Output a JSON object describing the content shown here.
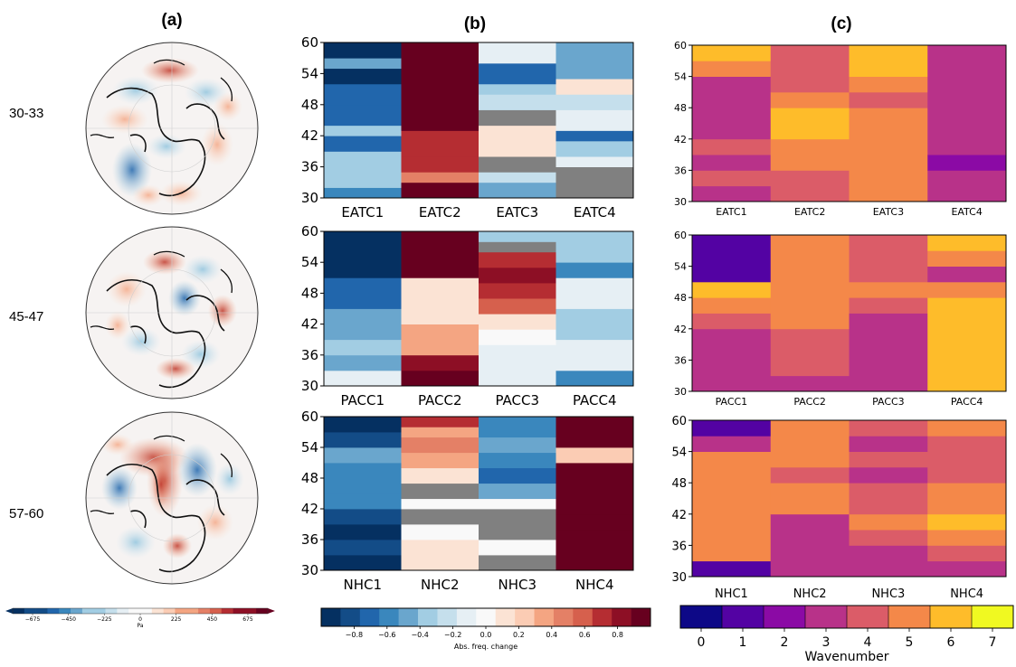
{
  "panel_titles": {
    "a": "(a)",
    "b": "(b)",
    "c": "(c)"
  },
  "row_labels": [
    "30-33",
    "45-47",
    "57-60"
  ],
  "colorbars": {
    "a": {
      "label": "Pa",
      "ticks": [
        "−675",
        "−450",
        "−225",
        "0",
        "225",
        "450",
        "675"
      ],
      "tick_values": [
        -675,
        -450,
        -225,
        0,
        225,
        450,
        675
      ],
      "range": [
        -800,
        800
      ]
    },
    "b": {
      "label": "Abs. freq. change",
      "ticks": [
        "−0.8",
        "−0.6",
        "−0.4",
        "−0.2",
        "0.0",
        "0.2",
        "0.4",
        "0.6",
        "0.8"
      ],
      "tick_values": [
        -0.8,
        -0.6,
        -0.4,
        -0.2,
        0.0,
        0.2,
        0.4,
        0.6,
        0.8
      ],
      "range": [
        -1.0,
        1.0
      ]
    },
    "c": {
      "label": "Wavenumber",
      "ticks": [
        "0",
        "1",
        "2",
        "3",
        "4",
        "5",
        "6",
        "7"
      ],
      "tick_values": [
        0,
        1,
        2,
        3,
        4,
        5,
        6,
        7
      ]
    }
  },
  "palettes": {
    "diverging": [
      "#053061",
      "#134c87",
      "#2166ac",
      "#3a87bd",
      "#6aa6cd",
      "#a2cde3",
      "#c5dfec",
      "#e6eff4",
      "#f9f9f9",
      "#fbe3d4",
      "#fbccb4",
      "#f4a582",
      "#e48066",
      "#d6604d",
      "#b52d32",
      "#8d0f25",
      "#67001f"
    ],
    "missing": "#808080",
    "wavenumber": [
      "#0d0887",
      "#5302a3",
      "#8b0aa5",
      "#b83289",
      "#db5c68",
      "#f48849",
      "#febc2a",
      "#f0f921"
    ]
  },
  "chart_data": [
    {
      "type": "heatmap",
      "panel": "(b)",
      "row": 0,
      "categories": [
        "EATC1",
        "EATC2",
        "EATC3",
        "EATC4"
      ],
      "yticks": [
        "30",
        "36",
        "42",
        "48",
        "54",
        "60"
      ],
      "ylim": [
        30,
        60
      ],
      "columns": [
        [
          [
            30,
            32,
            -0.55
          ],
          [
            32,
            34,
            -0.3
          ],
          [
            34,
            37,
            -0.3
          ],
          [
            37,
            39,
            -0.4
          ],
          [
            39,
            42,
            -0.7
          ],
          [
            42,
            44,
            -0.35
          ],
          [
            44,
            48,
            -0.7
          ],
          [
            48,
            52,
            -0.75
          ],
          [
            52,
            55,
            -0.95
          ],
          [
            55,
            57,
            -0.5
          ],
          [
            57,
            60,
            -0.9
          ]
        ],
        [
          [
            30,
            33,
            0.95
          ],
          [
            33,
            35,
            0.45
          ],
          [
            35,
            38,
            0.65
          ],
          [
            38,
            43,
            0.75
          ],
          [
            43,
            60,
            1.0
          ]
        ],
        [
          [
            30,
            33,
            -0.45
          ],
          [
            33,
            35,
            -0.25
          ],
          [
            35,
            38,
            null
          ],
          [
            38,
            44,
            0.1
          ],
          [
            44,
            47,
            null
          ],
          [
            47,
            50,
            -0.25
          ],
          [
            50,
            52,
            -0.35
          ],
          [
            52,
            56,
            -0.7
          ],
          [
            56,
            60,
            -0.15
          ]
        ],
        [
          [
            30,
            36,
            null
          ],
          [
            36,
            38,
            -0.15
          ],
          [
            38,
            41,
            -0.35
          ],
          [
            41,
            43,
            -0.7
          ],
          [
            43,
            47,
            -0.15
          ],
          [
            47,
            50,
            -0.25
          ],
          [
            50,
            53,
            0.1
          ],
          [
            53,
            60,
            -0.45
          ]
        ]
      ]
    },
    {
      "type": "heatmap",
      "panel": "(b)",
      "row": 1,
      "categories": [
        "PACC1",
        "PACC2",
        "PACC3",
        "PACC4"
      ],
      "yticks": [
        "30",
        "36",
        "42",
        "48",
        "54",
        "60"
      ],
      "ylim": [
        30,
        60
      ],
      "columns": [
        [
          [
            30,
            33,
            -0.15
          ],
          [
            33,
            36,
            -0.45
          ],
          [
            36,
            39,
            -0.3
          ],
          [
            39,
            45,
            -0.45
          ],
          [
            45,
            51,
            -0.7
          ],
          [
            51,
            60,
            -0.95
          ]
        ],
        [
          [
            30,
            33,
            1.0
          ],
          [
            33,
            36,
            0.8
          ],
          [
            36,
            39,
            0.3
          ],
          [
            39,
            42,
            0.4
          ],
          [
            42,
            51,
            0.1
          ],
          [
            51,
            60,
            1.0
          ]
        ],
        [
          [
            30,
            38,
            -0.15
          ],
          [
            38,
            41,
            0.05
          ],
          [
            41,
            44,
            0.1
          ],
          [
            44,
            47,
            0.6
          ],
          [
            47,
            50,
            0.75
          ],
          [
            50,
            53,
            0.85
          ],
          [
            53,
            56,
            0.65
          ],
          [
            56,
            58,
            null
          ],
          [
            58,
            60,
            -0.3
          ]
        ],
        [
          [
            30,
            33,
            -0.6
          ],
          [
            33,
            39,
            -0.15
          ],
          [
            39,
            45,
            -0.3
          ],
          [
            45,
            51,
            -0.15
          ],
          [
            51,
            54,
            -0.6
          ],
          [
            54,
            60,
            -0.3
          ]
        ]
      ]
    },
    {
      "type": "heatmap",
      "panel": "(b)",
      "row": 2,
      "categories": [
        "NHC1",
        "NHC2",
        "NHC3",
        "NHC4"
      ],
      "yticks": [
        "30",
        "36",
        "42",
        "48",
        "54",
        "60"
      ],
      "ylim": [
        30,
        60
      ],
      "columns": [
        [
          [
            30,
            33,
            -0.95
          ],
          [
            33,
            36,
            -0.8
          ],
          [
            36,
            39,
            -0.95
          ],
          [
            39,
            42,
            -0.8
          ],
          [
            42,
            45,
            -0.6
          ],
          [
            45,
            51,
            -0.55
          ],
          [
            51,
            54,
            -0.45
          ],
          [
            54,
            57,
            -0.8
          ],
          [
            57,
            60,
            -0.95
          ]
        ],
        [
          [
            30,
            36,
            0.1
          ],
          [
            36,
            39,
            0.0
          ],
          [
            39,
            42,
            null
          ],
          [
            42,
            44,
            0.0
          ],
          [
            44,
            47,
            null
          ],
          [
            47,
            50,
            0.1
          ],
          [
            50,
            53,
            0.35
          ],
          [
            53,
            56,
            0.5
          ],
          [
            56,
            58,
            0.4
          ],
          [
            58,
            60,
            0.7
          ]
        ],
        [
          [
            30,
            33,
            null
          ],
          [
            33,
            36,
            -0.05
          ],
          [
            36,
            42,
            null
          ],
          [
            42,
            44,
            -0.05
          ],
          [
            44,
            47,
            -0.45
          ],
          [
            47,
            50,
            -0.7
          ],
          [
            50,
            53,
            -0.55
          ],
          [
            53,
            56,
            -0.5
          ],
          [
            56,
            60,
            -0.55
          ]
        ],
        [
          [
            30,
            38,
            1.0
          ],
          [
            38,
            41,
            0.9
          ],
          [
            41,
            51,
            1.0
          ],
          [
            51,
            54,
            0.2
          ],
          [
            54,
            60,
            1.0
          ]
        ]
      ]
    },
    {
      "type": "heatmap",
      "panel": "(c)",
      "row": 0,
      "categories": [
        "EATC1",
        "EATC2",
        "EATC3",
        "EATC4"
      ],
      "yticks": [
        "30",
        "36",
        "42",
        "48",
        "54",
        "60"
      ],
      "ylim": [
        30,
        60
      ],
      "columns": [
        [
          [
            30,
            33,
            3
          ],
          [
            33,
            36,
            4
          ],
          [
            36,
            39,
            3
          ],
          [
            39,
            42,
            4
          ],
          [
            42,
            54,
            3
          ],
          [
            54,
            57,
            5
          ],
          [
            57,
            60,
            6
          ]
        ],
        [
          [
            30,
            36,
            4
          ],
          [
            36,
            42,
            5
          ],
          [
            42,
            48,
            6
          ],
          [
            48,
            51,
            5
          ],
          [
            51,
            60,
            4
          ]
        ],
        [
          [
            30,
            48,
            5
          ],
          [
            48,
            51,
            4
          ],
          [
            51,
            54,
            5
          ],
          [
            54,
            60,
            6
          ]
        ],
        [
          [
            30,
            36,
            3
          ],
          [
            36,
            39,
            2
          ],
          [
            39,
            60,
            3
          ]
        ]
      ]
    },
    {
      "type": "heatmap",
      "panel": "(c)",
      "row": 1,
      "categories": [
        "PACC1",
        "PACC2",
        "PACC3",
        "PACC4"
      ],
      "yticks": [
        "30",
        "36",
        "42",
        "48",
        "54",
        "60"
      ],
      "ylim": [
        30,
        60
      ],
      "columns": [
        [
          [
            30,
            42,
            3
          ],
          [
            42,
            45,
            4
          ],
          [
            45,
            48,
            5
          ],
          [
            48,
            51,
            6
          ],
          [
            51,
            60,
            1
          ]
        ],
        [
          [
            30,
            33,
            3
          ],
          [
            33,
            42,
            4
          ],
          [
            42,
            60,
            5
          ]
        ],
        [
          [
            30,
            45,
            3
          ],
          [
            45,
            48,
            4
          ],
          [
            48,
            51,
            5
          ],
          [
            51,
            60,
            4
          ]
        ],
        [
          [
            30,
            48,
            6
          ],
          [
            48,
            51,
            5
          ],
          [
            51,
            54,
            3
          ],
          [
            54,
            57,
            5
          ],
          [
            57,
            60,
            6
          ]
        ]
      ]
    },
    {
      "type": "heatmap",
      "panel": "(c)",
      "row": 2,
      "categories": [
        "NHC1",
        "NHC2",
        "NHC3",
        "NHC4"
      ],
      "yticks": [
        "30",
        "36",
        "42",
        "48",
        "54",
        "60"
      ],
      "ylim": [
        30,
        60
      ],
      "columns": [
        [
          [
            30,
            33,
            1
          ],
          [
            33,
            54,
            5
          ],
          [
            54,
            57,
            3
          ],
          [
            57,
            60,
            1
          ]
        ],
        [
          [
            30,
            42,
            3
          ],
          [
            42,
            48,
            5
          ],
          [
            48,
            51,
            4
          ],
          [
            51,
            60,
            5
          ]
        ],
        [
          [
            30,
            36,
            3
          ],
          [
            36,
            39,
            4
          ],
          [
            39,
            42,
            5
          ],
          [
            42,
            48,
            4
          ],
          [
            48,
            51,
            3
          ],
          [
            51,
            54,
            4
          ],
          [
            54,
            57,
            3
          ],
          [
            57,
            60,
            4
          ]
        ],
        [
          [
            30,
            33,
            3
          ],
          [
            33,
            36,
            4
          ],
          [
            36,
            39,
            5
          ],
          [
            39,
            42,
            6
          ],
          [
            42,
            48,
            5
          ],
          [
            48,
            57,
            4
          ],
          [
            57,
            60,
            5
          ]
        ]
      ]
    }
  ]
}
